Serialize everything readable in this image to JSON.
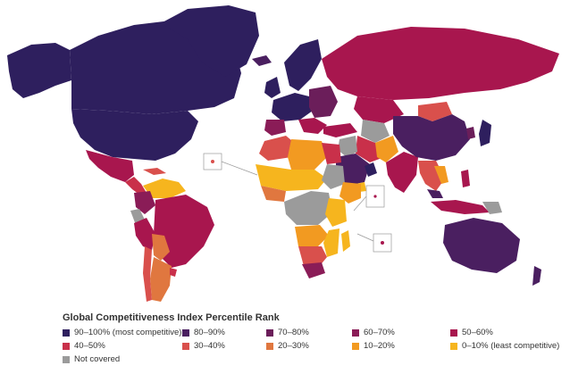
{
  "legend": {
    "title": "Global Competitiveness Index Percentile Rank",
    "items": [
      {
        "label": "90–100% (most competitive)",
        "color": "#2e1f5e"
      },
      {
        "label": "80–90%",
        "color": "#4a1f60"
      },
      {
        "label": "70–80%",
        "color": "#6b1e5a"
      },
      {
        "label": "60–70%",
        "color": "#8a1c57"
      },
      {
        "label": "50–60%",
        "color": "#a8164e"
      },
      {
        "label": "40–50%",
        "color": "#c9304a"
      },
      {
        "label": "30–40%",
        "color": "#d9504c"
      },
      {
        "label": "20–30%",
        "color": "#e0773f"
      },
      {
        "label": "10–20%",
        "color": "#f29a21"
      },
      {
        "label": "0–10% (least competitive)",
        "color": "#f6b51e"
      },
      {
        "label": "Not covered",
        "color": "#9b9b9b"
      }
    ]
  }
}
